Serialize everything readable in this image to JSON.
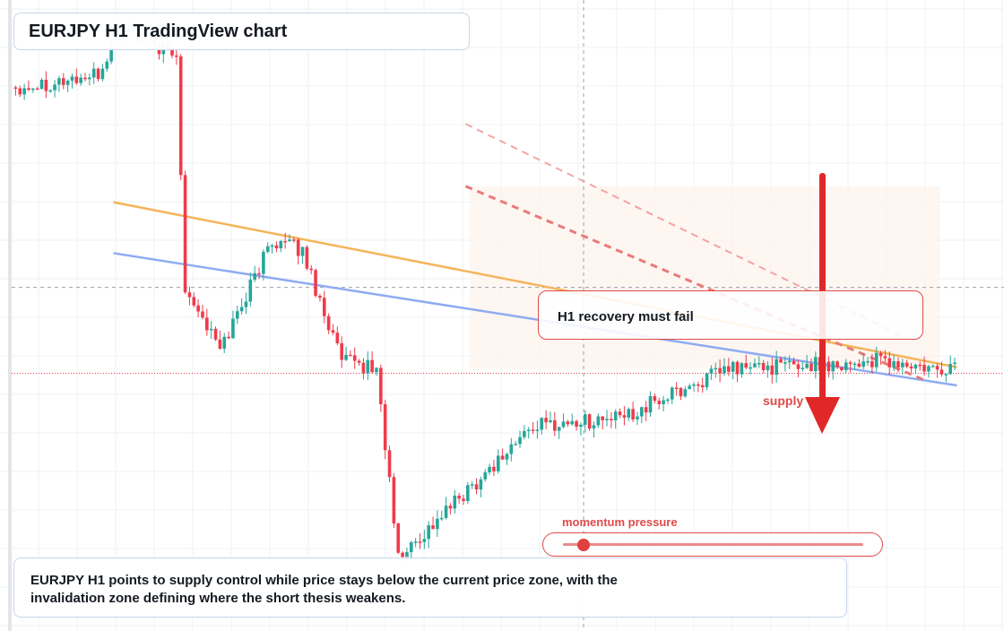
{
  "title": "EURJPY H1 TradingView chart",
  "callout": "H1 recovery must fail",
  "supply_label": "supply",
  "momentum": {
    "label": "momentum pressure",
    "level": 0.07
  },
  "summary": "EURJPY H1 points to supply control while price stays below the current price zone, with the invalidation zone defining where the short thesis weakens.",
  "colors": {
    "up": "#26a69a",
    "down": "#ef3b4b",
    "accent": "#e04a4a",
    "trend_orange": "#f5b45a",
    "trend_blue": "#8eacf2",
    "arrow": "#e02828"
  },
  "chart_data": {
    "type": "candlestick",
    "timeframe": "H1",
    "symbol": "EURJPY",
    "grid": true,
    "ohlc_segments": [
      {
        "from": 0,
        "to": 20,
        "start": 161.55,
        "end": 161.7
      },
      {
        "from": 20,
        "to": 25,
        "start": 161.7,
        "end": 162.35
      },
      {
        "from": 25,
        "to": 38,
        "start": 162.35,
        "end": 161.95
      },
      {
        "from": 38,
        "to": 40,
        "start": 161.95,
        "end": 158.95
      },
      {
        "from": 40,
        "to": 48,
        "start": 158.95,
        "end": 158.1
      },
      {
        "from": 48,
        "to": 60,
        "start": 158.1,
        "end": 159.55
      },
      {
        "from": 60,
        "to": 67,
        "start": 159.55,
        "end": 159.4
      },
      {
        "from": 67,
        "to": 76,
        "start": 159.4,
        "end": 157.95
      },
      {
        "from": 76,
        "to": 84,
        "start": 157.95,
        "end": 157.85
      },
      {
        "from": 84,
        "to": 89,
        "start": 157.85,
        "end": 155.35
      },
      {
        "from": 89,
        "to": 104,
        "start": 155.35,
        "end": 156.2
      },
      {
        "from": 104,
        "to": 120,
        "start": 156.2,
        "end": 157.1
      },
      {
        "from": 120,
        "to": 140,
        "start": 157.1,
        "end": 157.2
      },
      {
        "from": 140,
        "to": 165,
        "start": 157.2,
        "end": 157.85
      },
      {
        "from": 165,
        "to": 200,
        "start": 157.85,
        "end": 157.95
      },
      {
        "from": 200,
        "to": 213,
        "start": 157.95,
        "end": 157.8
      },
      {
        "from": 213,
        "to": 217,
        "start": 157.8,
        "end": 157.9
      }
    ],
    "candle_count": 217,
    "y_range": [
      154.4,
      162.7
    ],
    "current_price": 157.79,
    "crosshair_price": 158.92,
    "trendlines": [
      {
        "name": "orange",
        "from": [
          23,
          160.04
        ],
        "to": [
          217,
          157.87
        ]
      },
      {
        "name": "blue",
        "from": [
          23,
          159.37
        ],
        "to": [
          217,
          157.63
        ]
      }
    ],
    "projection_lines": [
      {
        "from": [
          104,
          161.07
        ],
        "to": [
          204,
          158.29
        ]
      },
      {
        "from": [
          104,
          160.25
        ],
        "to": [
          210,
          157.69
        ]
      }
    ],
    "supply_zone": [
      157.85,
      160.25
    ]
  }
}
